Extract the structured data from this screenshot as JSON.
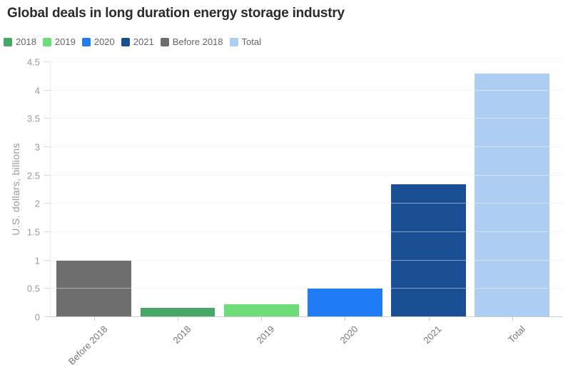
{
  "chart_data": {
    "type": "bar",
    "title": "Global deals in long duration energy storage industry",
    "subtitle": "",
    "xlabel": "",
    "ylabel": "U.S. dollars, billions",
    "categories": [
      "Before 2018",
      "2018",
      "2019",
      "2020",
      "2021",
      "Total"
    ],
    "values": [
      1.0,
      0.17,
      0.23,
      0.5,
      2.35,
      4.3
    ],
    "bar_colors": [
      "#6e6e6e",
      "#45a867",
      "#6fdd77",
      "#1f7cf4",
      "#1b4f94",
      "#aecdf2"
    ],
    "ylim": [
      0,
      4.5
    ],
    "yticks": [
      0,
      0.5,
      1,
      1.5,
      2,
      2.5,
      3,
      3.5,
      4,
      4.5
    ],
    "ytick_labels": [
      "0",
      "0.5",
      "1",
      "1.5",
      "2",
      "2.5",
      "3",
      "3.5",
      "4",
      "4.5"
    ],
    "grid": true,
    "legend_position": "top-left",
    "legend": [
      {
        "label": "2018",
        "color": "#45a867"
      },
      {
        "label": "2019",
        "color": "#6fdd77"
      },
      {
        "label": "2020",
        "color": "#1f7cf4"
      },
      {
        "label": "2021",
        "color": "#1b4f94"
      },
      {
        "label": "Before 2018",
        "color": "#6e6e6e"
      },
      {
        "label": "Total",
        "color": "#aecdf2"
      }
    ]
  }
}
